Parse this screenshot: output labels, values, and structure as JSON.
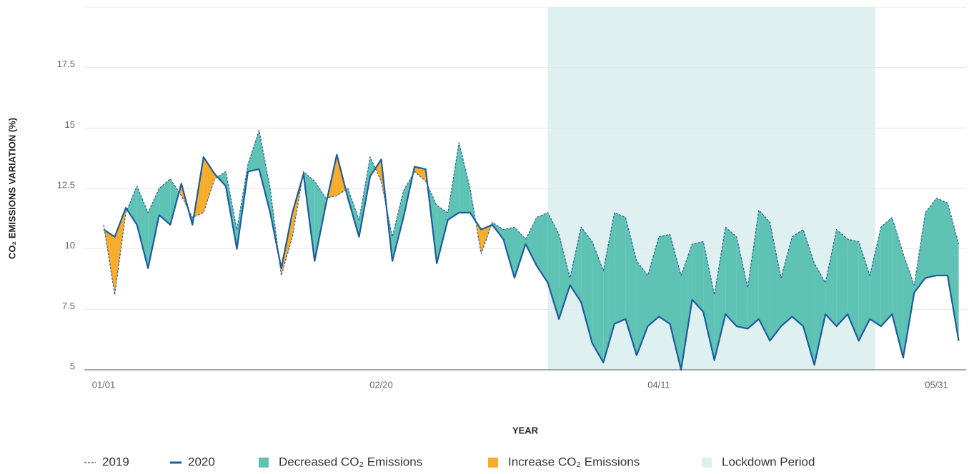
{
  "chart_data": {
    "type": "line",
    "y_label": "CO₂ EMISSIONS VARIATION (%)",
    "x_label": "YEAR",
    "x": [
      "01/01",
      "01/03",
      "01/05",
      "01/07",
      "01/09",
      "01/11",
      "01/13",
      "01/15",
      "01/17",
      "01/19",
      "01/21",
      "01/23",
      "01/25",
      "01/27",
      "01/29",
      "01/31",
      "02/02",
      "02/04",
      "02/06",
      "02/08",
      "02/10",
      "02/12",
      "02/14",
      "02/16",
      "02/18",
      "02/20",
      "02/22",
      "02/24",
      "02/26",
      "02/28",
      "03/02",
      "03/04",
      "03/06",
      "03/08",
      "03/10",
      "03/12",
      "03/14",
      "03/16",
      "03/18",
      "03/20",
      "03/22",
      "03/24",
      "03/26",
      "03/28",
      "03/30",
      "04/01",
      "04/03",
      "04/05",
      "04/07",
      "04/09",
      "04/11",
      "04/13",
      "04/15",
      "04/17",
      "04/19",
      "04/21",
      "04/23",
      "04/25",
      "04/27",
      "04/29",
      "05/01",
      "05/03",
      "05/05",
      "05/07",
      "05/09",
      "05/11",
      "05/13",
      "05/15",
      "05/17",
      "05/19",
      "05/21",
      "05/23",
      "05/25",
      "05/27",
      "05/29",
      "05/31",
      "06/02",
      "06/04"
    ],
    "series": [
      {
        "name": "2019",
        "color": "#2b5e9c",
        "style": "dashed",
        "values": [
          11.0,
          8.1,
          11.5,
          12.6,
          11.5,
          12.5,
          12.9,
          12.2,
          11.3,
          11.5,
          12.9,
          13.2,
          10.8,
          13.5,
          14.9,
          12.5,
          8.9,
          10.5,
          13.2,
          12.8,
          12.1,
          12.2,
          12.5,
          11.2,
          13.8,
          12.8,
          10.5,
          12.4,
          13.2,
          12.8,
          11.8,
          11.5,
          14.4,
          12.5,
          9.8,
          11.1,
          10.8,
          10.9,
          10.4,
          11.3,
          11.5,
          10.6,
          8.8,
          10.9,
          10.3,
          9.1,
          11.5,
          11.3,
          9.5,
          8.9,
          10.5,
          10.6,
          8.9,
          10.2,
          10.3,
          8.1,
          10.9,
          10.5,
          8.4,
          11.6,
          11.1,
          8.8,
          10.5,
          10.8,
          9.4,
          8.6,
          10.8,
          10.4,
          10.3,
          8.9,
          10.9,
          11.3,
          9.8,
          8.5,
          11.5,
          12.1,
          11.9,
          10.2
        ]
      },
      {
        "name": "2020",
        "color": "#1d5c9e",
        "style": "solid",
        "values": [
          10.8,
          10.5,
          11.7,
          11.0,
          9.2,
          11.4,
          11.0,
          12.7,
          11.0,
          13.8,
          13.1,
          12.6,
          10.0,
          13.2,
          13.3,
          11.5,
          9.2,
          11.5,
          13.1,
          9.5,
          11.8,
          13.9,
          12.1,
          10.5,
          13.0,
          13.7,
          9.5,
          11.3,
          13.4,
          13.3,
          9.4,
          11.2,
          11.5,
          11.5,
          10.8,
          11.0,
          10.4,
          8.8,
          10.2,
          9.3,
          8.6,
          7.1,
          8.5,
          7.8,
          6.1,
          5.3,
          6.9,
          7.1,
          5.6,
          6.8,
          7.2,
          6.9,
          5.0,
          7.9,
          7.4,
          5.4,
          7.3,
          6.8,
          6.7,
          7.1,
          6.2,
          6.8,
          7.2,
          6.8,
          5.2,
          7.3,
          6.8,
          7.3,
          6.2,
          7.1,
          6.8,
          7.3,
          5.5,
          8.2,
          8.8,
          8.9,
          8.9,
          6.2
        ]
      }
    ],
    "fills": [
      {
        "name": "Decreased CO₂ Emissions",
        "color": "#5ec2b4"
      },
      {
        "name": "Increase CO₂ Emissions",
        "color": "#f7ac2c"
      }
    ],
    "lockdown": {
      "name": "Lockdown Period",
      "color": "#dff0f0",
      "start": "03/22",
      "end": "05/20"
    },
    "xticks": [
      "01/01",
      "02/20",
      "04/11",
      "05/31"
    ],
    "ylim": [
      5,
      20
    ],
    "yticks": [
      5,
      7.5,
      10,
      12.5,
      15,
      17.5
    ],
    "grid": true
  }
}
